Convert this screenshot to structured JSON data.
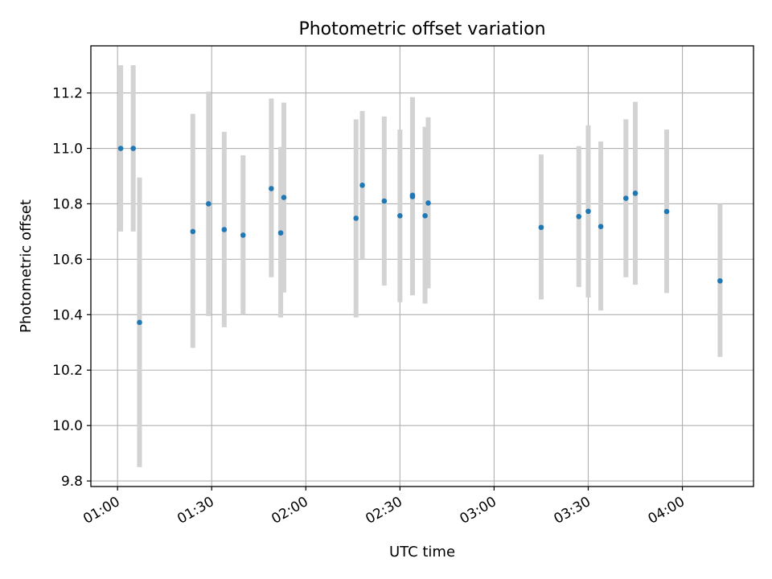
{
  "chart_data": {
    "type": "scatter",
    "title": "Photometric offset variation",
    "xlabel": "UTC time",
    "ylabel": "Photometric offset",
    "x_tick_labels": [
      "01:00",
      "01:30",
      "02:00",
      "02:30",
      "03:00",
      "03:30",
      "04:00"
    ],
    "y_tick_labels": [
      "9.8",
      "10.0",
      "10.2",
      "10.4",
      "10.6",
      "10.8",
      "11.0",
      "11.2"
    ],
    "xlim": [
      "00:51:30",
      "04:22:40"
    ],
    "ylim": [
      9.78,
      11.37
    ],
    "grid": true,
    "legend": "none",
    "colors": {
      "point": "#1f77b4",
      "errorbar": "#d3d3d3",
      "grid": "#b0b0b0"
    },
    "series": [
      {
        "points": [
          {
            "x": "01:01",
            "y": 11.0,
            "ylow": 10.7,
            "yhigh": 11.3
          },
          {
            "x": "01:05",
            "y": 11.0,
            "ylow": 10.7,
            "yhigh": 11.3
          },
          {
            "x": "01:07",
            "y": 10.372,
            "ylow": 9.85,
            "yhigh": 10.895
          },
          {
            "x": "01:24",
            "y": 10.7,
            "ylow": 10.28,
            "yhigh": 11.125
          },
          {
            "x": "01:29",
            "y": 10.8,
            "ylow": 10.395,
            "yhigh": 11.205
          },
          {
            "x": "01:34",
            "y": 10.707,
            "ylow": 10.355,
            "yhigh": 11.06
          },
          {
            "x": "01:40",
            "y": 10.687,
            "ylow": 10.4,
            "yhigh": 10.975
          },
          {
            "x": "01:49",
            "y": 10.855,
            "ylow": 10.535,
            "yhigh": 11.18
          },
          {
            "x": "01:52",
            "y": 10.695,
            "ylow": 10.39,
            "yhigh": 11.005
          },
          {
            "x": "01:53",
            "y": 10.823,
            "ylow": 10.48,
            "yhigh": 11.165
          },
          {
            "x": "02:16",
            "y": 10.748,
            "ylow": 10.39,
            "yhigh": 11.105
          },
          {
            "x": "02:18",
            "y": 10.867,
            "ylow": 10.6,
            "yhigh": 11.135
          },
          {
            "x": "02:25",
            "y": 10.81,
            "ylow": 10.505,
            "yhigh": 11.115
          },
          {
            "x": "02:30",
            "y": 10.757,
            "ylow": 10.445,
            "yhigh": 11.068
          },
          {
            "x": "02:34",
            "y": 10.826,
            "ylow": 10.47,
            "yhigh": 11.18
          },
          {
            "x": "02:34",
            "y": 10.831,
            "ylow": 10.48,
            "yhigh": 11.185
          },
          {
            "x": "02:38",
            "y": 10.757,
            "ylow": 10.44,
            "yhigh": 11.078
          },
          {
            "x": "02:39",
            "y": 10.803,
            "ylow": 10.495,
            "yhigh": 11.112
          },
          {
            "x": "03:15",
            "y": 10.715,
            "ylow": 10.455,
            "yhigh": 10.978
          },
          {
            "x": "03:27",
            "y": 10.754,
            "ylow": 10.5,
            "yhigh": 11.008
          },
          {
            "x": "03:30",
            "y": 10.773,
            "ylow": 10.462,
            "yhigh": 11.083
          },
          {
            "x": "03:34",
            "y": 10.718,
            "ylow": 10.415,
            "yhigh": 11.025
          },
          {
            "x": "03:42",
            "y": 10.82,
            "ylow": 10.535,
            "yhigh": 11.105
          },
          {
            "x": "03:45",
            "y": 10.838,
            "ylow": 10.508,
            "yhigh": 11.168
          },
          {
            "x": "03:55",
            "y": 10.772,
            "ylow": 10.478,
            "yhigh": 11.068
          },
          {
            "x": "04:12",
            "y": 10.522,
            "ylow": 10.248,
            "yhigh": 10.8
          }
        ]
      }
    ]
  }
}
